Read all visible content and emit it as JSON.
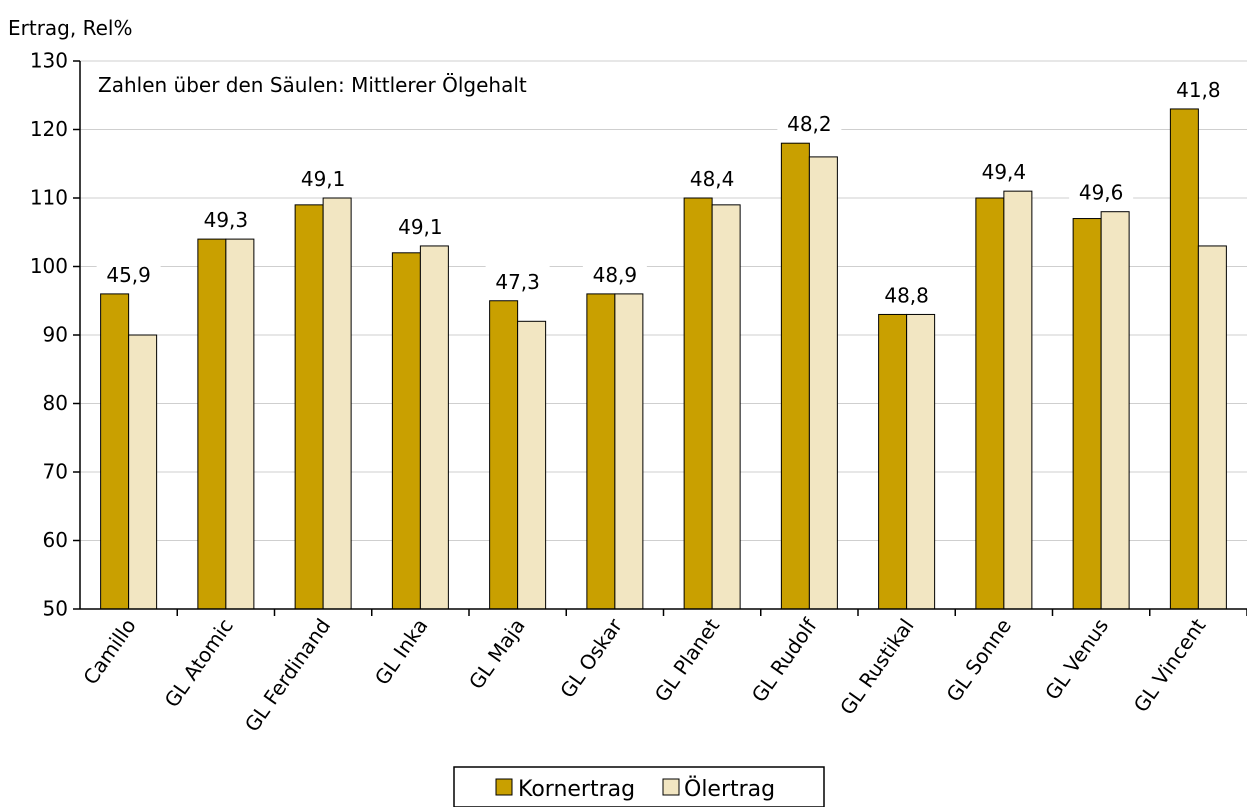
{
  "chart_data": {
    "type": "bar",
    "ylabel": "Ertrag, Rel%",
    "annotation": "Zahlen über den Säulen: Mittlerer Ölgehalt",
    "ylim": [
      50,
      130
    ],
    "yticks": [
      "50",
      "60",
      "70",
      "80",
      "90",
      "100",
      "110",
      "120",
      "130"
    ],
    "grid": true,
    "legend_position": "bottom",
    "categories": [
      "Camillo",
      "GL Atomic",
      "GL Ferdinand",
      "GL Inka",
      "GL Maja",
      "GL Oskar",
      "GL Planet",
      "GL Rudolf",
      "GL Rustikal",
      "GL Sonne",
      "GL Venus",
      "GL Vincent"
    ],
    "series": [
      {
        "name": "Kornertrag",
        "color": "#C9A000",
        "values": [
          96,
          104,
          109,
          102,
          95,
          96,
          110,
          118,
          93,
          110,
          107,
          123
        ]
      },
      {
        "name": "Ölertrag",
        "color": "#F2E6C2",
        "values": [
          90,
          104,
          110,
          103,
          92,
          96,
          109,
          116,
          93,
          111,
          108,
          103
        ]
      }
    ],
    "oil_content_labels": [
      "45,9",
      "49,3",
      "49,1",
      "49,1",
      "47,3",
      "48,9",
      "48,4",
      "48,2",
      "48,8",
      "49,4",
      "49,6",
      "41,8"
    ]
  }
}
